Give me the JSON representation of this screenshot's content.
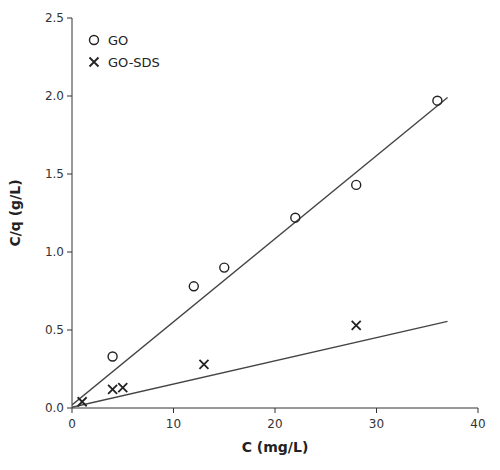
{
  "chart_data": {
    "type": "scatter",
    "xlabel": "C (mg/L)",
    "ylabel": "C/q (g/L)",
    "xlim": [
      0,
      40
    ],
    "ylim": [
      0.0,
      2.5
    ],
    "xticks": [
      0,
      10,
      20,
      30,
      40
    ],
    "yticks": [
      {
        "value": 0.0,
        "label": "0.0"
      },
      0.5,
      {
        "value": 1.0,
        "label": "1.0"
      },
      1.5,
      {
        "value": 2.0,
        "label": "2.0"
      },
      2.5
    ],
    "legend": "upper left",
    "grid": false,
    "series": [
      {
        "type": "line",
        "color": "#444444",
        "x": [
          0,
          37
        ],
        "values": [
          0.02,
          1.99
        ]
      },
      {
        "type": "line",
        "color": "#444444",
        "x": [
          0,
          37
        ],
        "values": [
          0.005,
          0.555
        ]
      },
      {
        "name": "GO",
        "type": "scatter",
        "marker": "circle",
        "color": "#222222",
        "x": [
          4,
          12,
          15,
          22,
          28,
          36
        ],
        "values": [
          0.33,
          0.78,
          0.9,
          1.22,
          1.43,
          1.97
        ]
      },
      {
        "name": "GO-SDS",
        "type": "scatter",
        "marker": "x",
        "color": "#222222",
        "x": [
          1,
          4,
          5,
          13,
          28
        ],
        "values": [
          0.04,
          0.12,
          0.13,
          0.28,
          0.53
        ]
      }
    ]
  }
}
